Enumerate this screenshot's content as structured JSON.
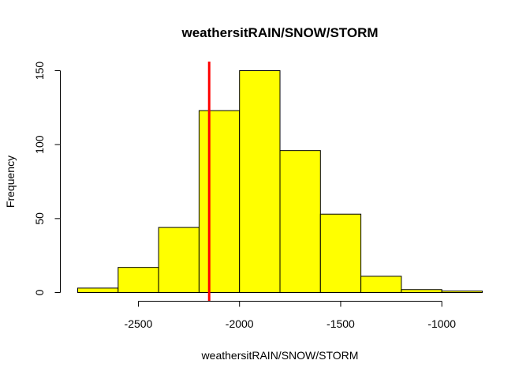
{
  "chart_data": {
    "type": "bar",
    "subtype": "histogram",
    "title": "weathersitRAIN/SNOW/STORM",
    "xlabel": "weathersitRAIN/SNOW/STORM",
    "ylabel": "Frequency",
    "bins": [
      {
        "start": -2800,
        "end": -2600,
        "count": 3
      },
      {
        "start": -2600,
        "end": -2400,
        "count": 17
      },
      {
        "start": -2400,
        "end": -2200,
        "count": 44
      },
      {
        "start": -2200,
        "end": -2000,
        "count": 123
      },
      {
        "start": -2000,
        "end": -1800,
        "count": 150
      },
      {
        "start": -1800,
        "end": -1600,
        "count": 96
      },
      {
        "start": -1600,
        "end": -1400,
        "count": 53
      },
      {
        "start": -1400,
        "end": -1200,
        "count": 11
      },
      {
        "start": -1200,
        "end": -1000,
        "count": 2
      },
      {
        "start": -1000,
        "end": -800,
        "count": 1
      }
    ],
    "x_ticks": [
      -2500,
      -2000,
      -1500,
      -1000
    ],
    "x_tick_labels": [
      "-2500",
      "-2000",
      "-1500",
      "-1000"
    ],
    "y_ticks": [
      0,
      50,
      100,
      150
    ],
    "y_tick_labels": [
      "0",
      "50",
      "100",
      "150"
    ],
    "xlim": [
      -2800,
      -800
    ],
    "ylim": [
      0,
      150
    ],
    "bar_fill": "#ffff00",
    "bar_stroke": "#000000",
    "reference_line": {
      "x": -2150,
      "color": "#ff0000"
    },
    "grid": false,
    "legend": "none"
  }
}
